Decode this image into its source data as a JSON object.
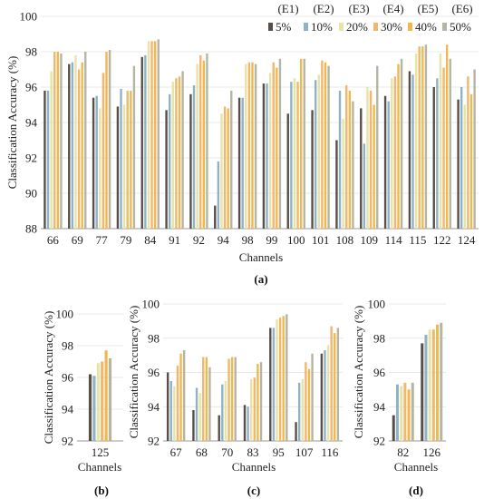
{
  "palette": [
    "#594f4a",
    "#8fb2c7",
    "#e8e3a6",
    "#f2b66e",
    "#f0b94d",
    "#b6b5a3"
  ],
  "legend": {
    "items": [
      {
        "code": "(E1)",
        "label": "5%"
      },
      {
        "code": "(E2)",
        "label": "10%"
      },
      {
        "code": "(E3)",
        "label": "20%"
      },
      {
        "code": "(E4)",
        "label": "30%"
      },
      {
        "code": "(E5)",
        "label": "40%"
      },
      {
        "code": "(E6)",
        "label": "50%"
      }
    ]
  },
  "chart_data": [
    {
      "type": "bar",
      "panel": "(a)",
      "ylabel": "Classification Accuracy (%)",
      "xlabel": "Channels",
      "ylim": [
        88,
        100
      ],
      "yticks": [
        88,
        90,
        92,
        94,
        96,
        98,
        100
      ],
      "categories": [
        "66",
        "69",
        "77",
        "79",
        "84",
        "91",
        "92",
        "94",
        "98",
        "99",
        "100",
        "101",
        "108",
        "109",
        "114",
        "115",
        "122",
        "124"
      ],
      "series": [
        {
          "name": "5%",
          "values": [
            95.8,
            97.3,
            95.4,
            94.9,
            97.7,
            94.7,
            95.6,
            89.3,
            95.4,
            96.2,
            94.5,
            94.7,
            93.0,
            94.8,
            95.5,
            96.9,
            96.0,
            95.3
          ]
        },
        {
          "name": "10%",
          "values": [
            95.8,
            97.4,
            95.5,
            95.9,
            97.8,
            95.6,
            96.1,
            91.8,
            95.4,
            96.2,
            96.3,
            96.4,
            95.8,
            92.8,
            95.2,
            96.7,
            96.5,
            96.0
          ]
        },
        {
          "name": "20%",
          "values": [
            96.9,
            97.8,
            94.8,
            95.0,
            98.6,
            96.3,
            97.3,
            94.5,
            97.3,
            96.8,
            96.5,
            96.7,
            94.2,
            96.0,
            96.5,
            97.9,
            97.9,
            95.0
          ]
        },
        {
          "name": "30%",
          "values": [
            98.0,
            97.0,
            96.8,
            95.8,
            98.6,
            96.5,
            97.8,
            94.9,
            97.4,
            97.4,
            96.3,
            97.5,
            96.1,
            95.8,
            96.6,
            98.3,
            97.1,
            96.6
          ]
        },
        {
          "name": "40%",
          "values": [
            98.0,
            97.4,
            98.0,
            95.8,
            98.6,
            96.6,
            97.5,
            94.8,
            97.4,
            97.1,
            97.6,
            97.4,
            95.8,
            95.0,
            97.3,
            98.3,
            98.4,
            95.6
          ]
        },
        {
          "name": "50%",
          "values": [
            97.9,
            98.0,
            98.1,
            97.2,
            98.7,
            96.9,
            97.9,
            95.8,
            97.3,
            97.6,
            97.6,
            97.2,
            95.2,
            97.2,
            97.6,
            98.4,
            97.6,
            97.0
          ]
        }
      ]
    },
    {
      "type": "bar",
      "panel": "(b)",
      "ylabel": "Classification Accuracy (%)",
      "xlabel": "Channels",
      "ylim": [
        92,
        100
      ],
      "yticks": [
        92,
        94,
        96,
        98,
        100
      ],
      "categories": [
        "125"
      ],
      "series": [
        {
          "name": "5%",
          "values": [
            96.2
          ]
        },
        {
          "name": "10%",
          "values": [
            96.1
          ]
        },
        {
          "name": "20%",
          "values": [
            96.9
          ]
        },
        {
          "name": "30%",
          "values": [
            97.0
          ]
        },
        {
          "name": "40%",
          "values": [
            97.7
          ]
        },
        {
          "name": "50%",
          "values": [
            97.2
          ]
        }
      ]
    },
    {
      "type": "bar",
      "panel": "(c)",
      "ylabel": "Classification Accuracy (%)",
      "xlabel": "Channels",
      "ylim": [
        92,
        100
      ],
      "yticks": [
        92,
        94,
        96,
        98,
        100
      ],
      "categories": [
        "67",
        "68",
        "70",
        "83",
        "95",
        "107",
        "116"
      ],
      "series": [
        {
          "name": "5%",
          "values": [
            96.0,
            93.8,
            93.5,
            94.1,
            98.6,
            93.1,
            97.1
          ]
        },
        {
          "name": "10%",
          "values": [
            95.5,
            95.1,
            95.3,
            94.0,
            98.6,
            95.4,
            97.3
          ]
        },
        {
          "name": "20%",
          "values": [
            95.2,
            94.8,
            95.5,
            95.6,
            99.1,
            95.6,
            97.6
          ]
        },
        {
          "name": "30%",
          "values": [
            96.4,
            96.9,
            96.8,
            95.7,
            99.2,
            96.6,
            98.7
          ]
        },
        {
          "name": "40%",
          "values": [
            97.1,
            96.9,
            96.9,
            96.5,
            99.3,
            96.2,
            98.3
          ]
        },
        {
          "name": "50%",
          "values": [
            97.3,
            96.3,
            96.9,
            96.6,
            99.4,
            97.1,
            98.6
          ]
        }
      ]
    },
    {
      "type": "bar",
      "panel": "(d)",
      "ylabel": "Classification Accuracy (%)",
      "xlabel": "Channels",
      "ylim": [
        92,
        100
      ],
      "yticks": [
        92,
        94,
        96,
        98,
        100
      ],
      "categories": [
        "82",
        "126"
      ],
      "series": [
        {
          "name": "5%",
          "values": [
            93.5,
            97.7
          ]
        },
        {
          "name": "10%",
          "values": [
            95.3,
            98.2
          ]
        },
        {
          "name": "20%",
          "values": [
            95.2,
            98.5
          ]
        },
        {
          "name": "30%",
          "values": [
            95.4,
            98.5
          ]
        },
        {
          "name": "40%",
          "values": [
            95.0,
            98.8
          ]
        },
        {
          "name": "50%",
          "values": [
            95.4,
            98.9
          ]
        }
      ]
    }
  ]
}
